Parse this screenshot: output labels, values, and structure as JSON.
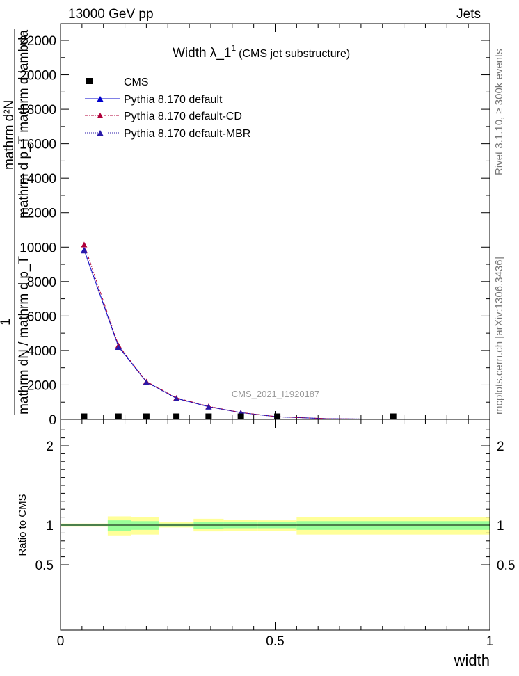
{
  "header": {
    "left": "13000 GeV pp",
    "right": "Jets"
  },
  "side_text": {
    "rivet": "Rivet 3.1.10, ≥ 300k events",
    "mcplots": "mcplots.cern.ch [arXiv:1306.3436]"
  },
  "colors": {
    "default": "#0000cc",
    "cd": "#b0003a",
    "mbr": "#2a1aa8",
    "cms": "#000000",
    "band_outer": "#ffff99",
    "band_inner": "#99ff99"
  },
  "chart_data": [
    {
      "type": "line",
      "title": "Width λ_1",
      "title_sup": "1",
      "subtitle": "(CMS jet substructure)",
      "watermark": "CMS_2021_I1920187",
      "ylabel_num": "mathrm d²N",
      "ylabel_den": "mathrm d p_T mathrm d lambda",
      "ylabel_prefix": "1",
      "ylabel_prefix_den": "mathrm dN / mathrm d p_T",
      "xlim": [
        0,
        1
      ],
      "ylim": [
        0,
        22000
      ],
      "yticks": [
        0,
        2000,
        4000,
        6000,
        8000,
        10000,
        12000,
        14000,
        16000,
        18000,
        20000,
        22000
      ],
      "ytick_labels": [
        "0",
        "2000",
        "4000",
        "6000",
        "8000",
        "10000",
        "12000",
        "14000",
        "16000",
        "18000",
        "20000",
        "22000"
      ],
      "legend": [
        "CMS",
        "Pythia 8.170 default",
        "Pythia 8.170 default-CD",
        "Pythia 8.170 default-MBR"
      ],
      "cms": {
        "name": "CMS",
        "x": [
          0.055,
          0.135,
          0.2,
          0.27,
          0.345,
          0.42,
          0.505,
          0.775
        ],
        "y": [
          60,
          30,
          20,
          15,
          10,
          8,
          5,
          2
        ]
      },
      "series": [
        {
          "name": "Pythia 8.170 default",
          "x": [
            0.055,
            0.135,
            0.2,
            0.27,
            0.345,
            0.42,
            0.505,
            0.62,
            0.775
          ],
          "y": [
            9850,
            4230,
            2180,
            1220,
            740,
            390,
            150,
            40,
            5
          ]
        },
        {
          "name": "Pythia 8.170 default-CD",
          "x": [
            0.055,
            0.135,
            0.2,
            0.27,
            0.345,
            0.42,
            0.505,
            0.62,
            0.775
          ],
          "y": [
            10150,
            4300,
            2200,
            1250,
            760,
            400,
            155,
            42,
            5
          ]
        },
        {
          "name": "Pythia 8.170 default-MBR",
          "x": [
            0.055,
            0.135,
            0.2,
            0.27,
            0.345,
            0.42,
            0.505,
            0.62,
            0.775
          ],
          "y": [
            9800,
            4200,
            2160,
            1210,
            735,
            385,
            148,
            40,
            5
          ]
        }
      ]
    },
    {
      "type": "area",
      "ylabel": "Ratio to CMS",
      "xlabel": "width",
      "xlim": [
        0,
        1
      ],
      "ylim": [
        0.33,
        2.3
      ],
      "xticks": [
        0,
        0.5,
        1
      ],
      "xtick_labels": [
        "0",
        "0.5",
        "1"
      ],
      "yticks": [
        0.5,
        1,
        2
      ],
      "ytick_labels": [
        "0.5",
        "1",
        "2"
      ],
      "bins": [
        {
          "x0": 0.0,
          "x1": 0.11,
          "inner": [
            0.99,
            1.01
          ],
          "outer": [
            0.98,
            1.02
          ]
        },
        {
          "x0": 0.11,
          "x1": 0.165,
          "inner": [
            0.93,
            1.06
          ],
          "outer": [
            0.87,
            1.11
          ]
        },
        {
          "x0": 0.165,
          "x1": 0.23,
          "inner": [
            0.94,
            1.05
          ],
          "outer": [
            0.88,
            1.1
          ]
        },
        {
          "x0": 0.23,
          "x1": 0.31,
          "inner": [
            0.98,
            1.02
          ],
          "outer": [
            0.97,
            1.04
          ]
        },
        {
          "x0": 0.31,
          "x1": 0.38,
          "inner": [
            0.95,
            1.04
          ],
          "outer": [
            0.92,
            1.08
          ]
        },
        {
          "x0": 0.38,
          "x1": 0.46,
          "inner": [
            0.96,
            1.04
          ],
          "outer": [
            0.93,
            1.07
          ]
        },
        {
          "x0": 0.46,
          "x1": 0.55,
          "inner": [
            0.96,
            1.04
          ],
          "outer": [
            0.93,
            1.06
          ]
        },
        {
          "x0": 0.55,
          "x1": 1.0,
          "inner": [
            0.94,
            1.05
          ],
          "outer": [
            0.88,
            1.1
          ]
        }
      ]
    }
  ]
}
